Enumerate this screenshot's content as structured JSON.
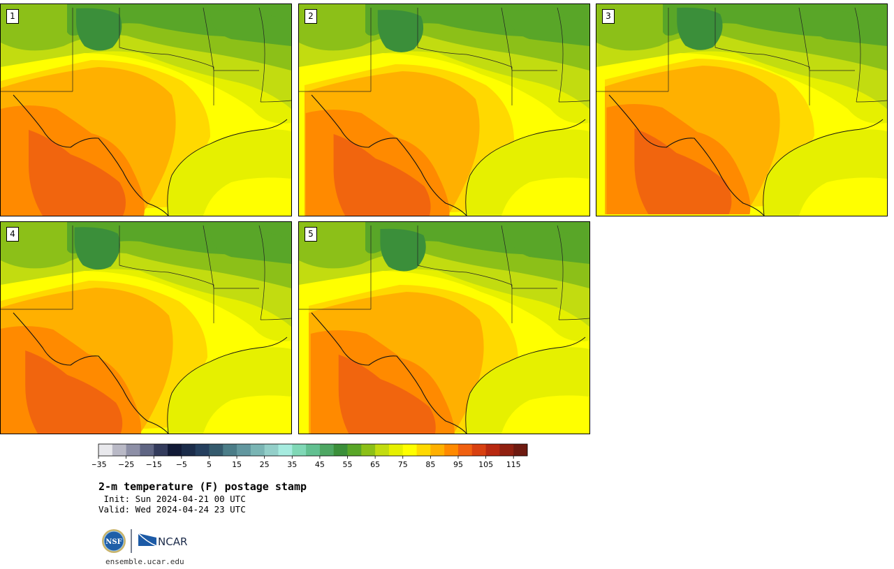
{
  "figure": {
    "title": "2-m temperature (F) postage stamp",
    "init": " Init: Sun 2024-04-21 00 UTC",
    "valid": "Valid: Wed 2024-04-24 23 UTC",
    "url": "ensemble.ucar.edu",
    "logos": {
      "nsf": "NSF",
      "ncar": "NCAR"
    }
  },
  "panels": [
    {
      "label": "1"
    },
    {
      "label": "2"
    },
    {
      "label": "3"
    },
    {
      "label": "4"
    },
    {
      "label": "5"
    }
  ],
  "colorbar": {
    "tick_labels": [
      "−35",
      "−25",
      "−15",
      "−5",
      "5",
      "15",
      "25",
      "35",
      "45",
      "55",
      "65",
      "75",
      "85",
      "95",
      "105",
      "115"
    ],
    "colors": [
      "#e8e8ec",
      "#b9b9c6",
      "#8d8fa6",
      "#5f6583",
      "#333b5c",
      "#111a36",
      "#1b2c4a",
      "#253f5e",
      "#345a6d",
      "#4b7d88",
      "#62979f",
      "#7ab5b4",
      "#93cfc9",
      "#a6ebdf",
      "#80d8b6",
      "#62c091",
      "#4ea763",
      "#3b8f3a",
      "#59a628",
      "#8cc018",
      "#c2dc10",
      "#e6f000",
      "#ffff00",
      "#ffd900",
      "#ffb000",
      "#ff8a00",
      "#f06010",
      "#d84010",
      "#b82810",
      "#902010",
      "#6e1a10"
    ]
  }
}
